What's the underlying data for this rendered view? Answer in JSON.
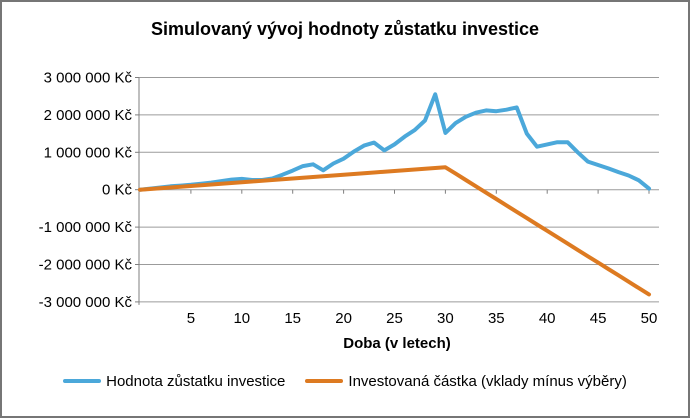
{
  "chart_data": {
    "type": "line",
    "title": "Simulovaný vývoj hodnoty zůstatku investice",
    "xlabel": "Doba (v letech)",
    "ylabel": "",
    "grid": "horizontal",
    "legend_position": "bottom",
    "xlim": [
      0,
      51
    ],
    "ylim": [
      -3000000,
      3000000
    ],
    "x_ticks": [
      5,
      10,
      15,
      20,
      25,
      30,
      35,
      40,
      45,
      50
    ],
    "y_ticks": {
      "values": [
        3000000,
        2000000,
        1000000,
        0,
        -1000000,
        -2000000,
        -3000000
      ],
      "labels": [
        "3 000 000 Kč",
        "2 000 000 Kč",
        "1 000 000 Kč",
        "0 Kč",
        "-1 000 000 Kč",
        "-2 000 000 Kč",
        "-3 000 000 Kč"
      ]
    },
    "x": [
      0,
      1,
      2,
      3,
      4,
      5,
      6,
      7,
      8,
      9,
      10,
      11,
      12,
      13,
      14,
      15,
      16,
      17,
      18,
      19,
      20,
      21,
      22,
      23,
      24,
      25,
      26,
      27,
      28,
      29,
      30,
      31,
      32,
      33,
      34,
      35,
      36,
      37,
      38,
      39,
      40,
      41,
      42,
      43,
      44,
      45,
      46,
      47,
      48,
      49,
      50
    ],
    "series": [
      {
        "name": "Hodnota zůstatku investice",
        "color": "#4BA8DA",
        "line_width": 4,
        "values": [
          0,
          30000,
          60000,
          90000,
          110000,
          130000,
          160000,
          190000,
          230000,
          270000,
          290000,
          260000,
          260000,
          300000,
          400000,
          510000,
          630000,
          680000,
          520000,
          700000,
          830000,
          1020000,
          1180000,
          1260000,
          1050000,
          1210000,
          1420000,
          1600000,
          1850000,
          2550000,
          1520000,
          1780000,
          1950000,
          2060000,
          2120000,
          2100000,
          2140000,
          2200000,
          1500000,
          1150000,
          1210000,
          1270000,
          1270000,
          1000000,
          750000,
          660000,
          570000,
          470000,
          380000,
          250000,
          30000
        ]
      },
      {
        "name": "Investovaná částka (vklady mínus výběry)",
        "color": "#DD7A21",
        "line_width": 4,
        "values": [
          0,
          20000,
          40000,
          60000,
          80000,
          100000,
          120000,
          140000,
          160000,
          180000,
          200000,
          220000,
          240000,
          260000,
          280000,
          300000,
          320000,
          340000,
          360000,
          380000,
          400000,
          420000,
          440000,
          460000,
          480000,
          500000,
          520000,
          540000,
          560000,
          580000,
          600000,
          430000,
          260000,
          90000,
          -80000,
          -250000,
          -420000,
          -590000,
          -760000,
          -930000,
          -1100000,
          -1270000,
          -1440000,
          -1610000,
          -1780000,
          -1950000,
          -2120000,
          -2290000,
          -2460000,
          -2630000,
          -2800000
        ]
      }
    ],
    "colors": {
      "gridline": "#9b9b9b",
      "axis": "#7f7f7f",
      "text": "#000000",
      "background": "#ffffff",
      "frame_border": "#767676"
    }
  }
}
